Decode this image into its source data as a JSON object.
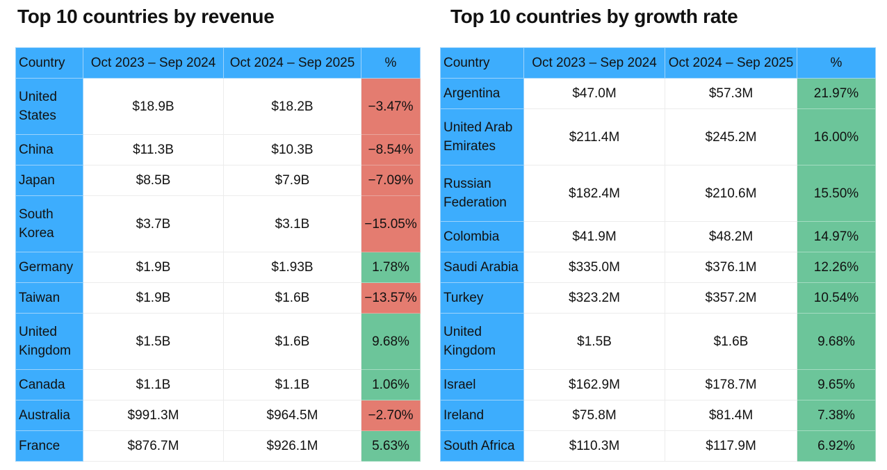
{
  "chart_data": [
    {
      "type": "table",
      "title": "Top 10 countries by revenue",
      "columns": [
        "Country",
        "Oct 2023 – Sep 2024",
        "Oct 2024 – Sep 2025",
        "%"
      ],
      "rows": [
        [
          "United States",
          "$18.9B",
          "$18.2B",
          "−3.47%"
        ],
        [
          "China",
          "$11.3B",
          "$10.3B",
          "−8.54%"
        ],
        [
          "Japan",
          "$8.5B",
          "$7.9B",
          "−7.09%"
        ],
        [
          "South Korea",
          "$3.7B",
          "$3.1B",
          "−15.05%"
        ],
        [
          "Germany",
          "$1.9B",
          "$1.93B",
          "1.78%"
        ],
        [
          "Taiwan",
          "$1.9B",
          "$1.6B",
          "−13.57%"
        ],
        [
          "United Kingdom",
          "$1.5B",
          "$1.6B",
          "9.68%"
        ],
        [
          "Canada",
          "$1.1B",
          "$1.1B",
          "1.06%"
        ],
        [
          "Australia",
          "$991.3M",
          "$964.5M",
          "−2.70%"
        ],
        [
          "France",
          "$876.7M",
          "$926.1M",
          "5.63%"
        ]
      ]
    },
    {
      "type": "table",
      "title": "Top 10 countries by growth rate",
      "columns": [
        "Country",
        "Oct 2023 – Sep 2024",
        "Oct 2024 – Sep 2025",
        "%"
      ],
      "rows": [
        [
          "Argentina",
          "$47.0M",
          "$57.3M",
          "21.97%"
        ],
        [
          "United Arab Emirates",
          "$211.4M",
          "$245.2M",
          "16.00%"
        ],
        [
          "Russian Federation",
          "$182.4M",
          "$210.6M",
          "15.50%"
        ],
        [
          "Colombia",
          "$41.9M",
          "$48.2M",
          "14.97%"
        ],
        [
          "Saudi Arabia",
          "$335.0M",
          "$376.1M",
          "12.26%"
        ],
        [
          "Turkey",
          "$323.2M",
          "$357.2M",
          "10.54%"
        ],
        [
          "United Kingdom",
          "$1.5B",
          "$1.6B",
          "9.68%"
        ],
        [
          "Israel",
          "$162.9M",
          "$178.7M",
          "9.65%"
        ],
        [
          "Ireland",
          "$75.8M",
          "$81.4M",
          "7.38%"
        ],
        [
          "South Africa",
          "$110.3M",
          "$117.9M",
          "6.92%"
        ]
      ]
    }
  ],
  "colors": {
    "header": "#3dadfd",
    "negative": "#e47c70",
    "positive": "#6cc59a"
  }
}
